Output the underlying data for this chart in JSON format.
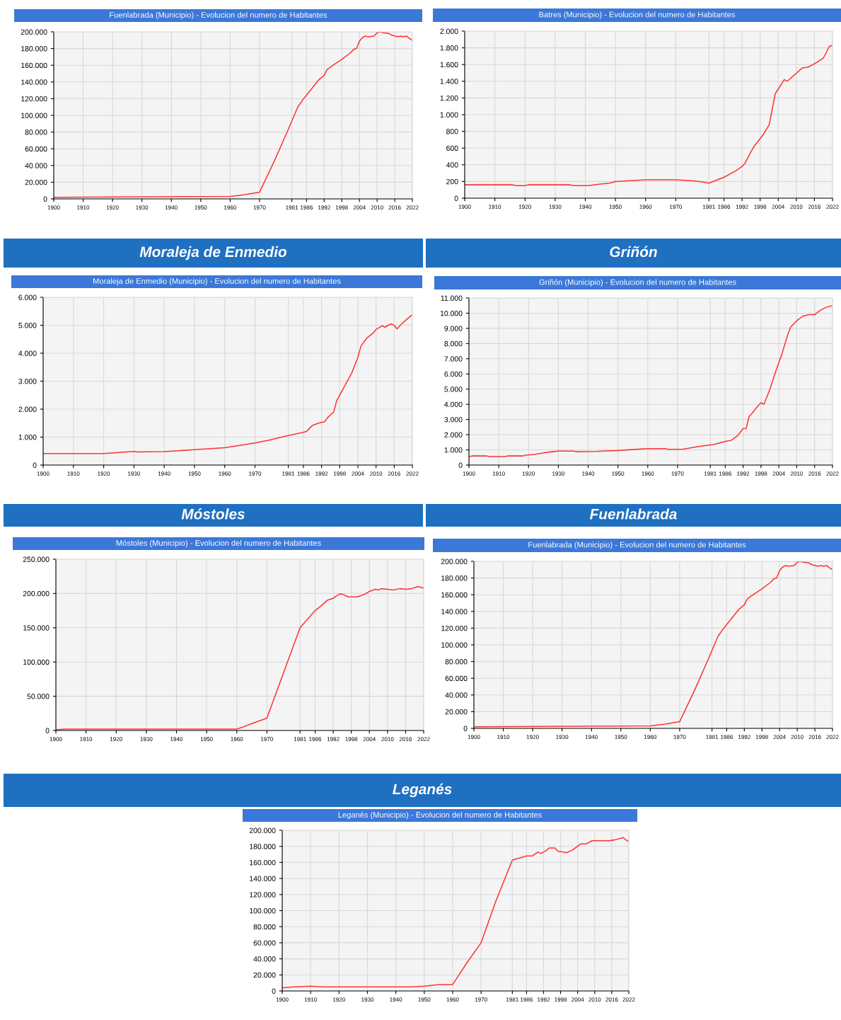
{
  "chart_data": [
    {
      "type": "line",
      "title": "Fuenlabrada (Municipio) - Evolucion del numero de Habitantes",
      "x": [
        1900,
        1960,
        1965,
        1970,
        1975,
        1980,
        1983,
        1985,
        1988,
        1990,
        1992,
        1993,
        1995,
        1998,
        2001,
        2002,
        2003,
        2004,
        2005,
        2006,
        2007,
        2009,
        2010,
        2011,
        2012,
        2014,
        2015,
        2017,
        2018,
        2019,
        2020,
        2021,
        2022
      ],
      "series": [
        {
          "color": "#ff3333",
          "values": [
            2000,
            3000,
            5000,
            8000,
            45000,
            85000,
            110000,
            120000,
            133000,
            142000,
            148000,
            155000,
            160000,
            167000,
            175000,
            179000,
            180000,
            189000,
            193000,
            195000,
            194000,
            195000,
            199000,
            200000,
            199000,
            198000,
            196000,
            194000,
            195000,
            194000,
            195000,
            192000,
            190000
          ]
        }
      ],
      "xlim": [
        1900,
        2022
      ],
      "xticks": [
        1900,
        1910,
        1920,
        1930,
        1940,
        1950,
        1960,
        1970,
        1981,
        1986,
        1992,
        1998,
        2004,
        2010,
        2016,
        2022
      ],
      "ylim": [
        0,
        200000
      ],
      "yticks": [
        {
          "value": 0,
          "label": "0"
        },
        {
          "value": 20000,
          "label": "20.000"
        },
        {
          "value": 40000,
          "label": "40.000"
        },
        {
          "value": 60000,
          "label": "60.000"
        },
        {
          "value": 80000,
          "label": "80.000"
        },
        {
          "value": 100000,
          "label": "100.000"
        },
        {
          "value": 120000,
          "label": "120.000"
        },
        {
          "value": 140000,
          "label": "140.000"
        },
        {
          "value": 160000,
          "label": "160.000"
        },
        {
          "value": 180000,
          "label": "180.000"
        },
        {
          "value": 200000,
          "label": "200.000"
        }
      ],
      "grid": true,
      "line_style": "solid"
    },
    {
      "type": "line",
      "title": "Batres (Municipio) - Evolucion del numero de Habitantes",
      "x": [
        1900,
        1916,
        1917,
        1920,
        1921,
        1935,
        1936,
        1941,
        1945,
        1948,
        1950,
        1955,
        1960,
        1965,
        1970,
        1975,
        1978,
        1981,
        1986,
        1990,
        1992,
        1993,
        1995,
        1996,
        1999,
        2001,
        2003,
        2006,
        2007,
        2012,
        2014,
        2017,
        2019,
        2021,
        2022
      ],
      "series": [
        {
          "color": "#ff3333",
          "values": [
            160,
            160,
            150,
            150,
            160,
            160,
            150,
            150,
            170,
            180,
            200,
            210,
            220,
            220,
            220,
            210,
            200,
            180,
            250,
            330,
            380,
            420,
            560,
            620,
            760,
            880,
            1250,
            1420,
            1400,
            1560,
            1570,
            1630,
            1680,
            1820,
            1830
          ]
        }
      ],
      "xlim": [
        1900,
        2022
      ],
      "xticks": [
        1900,
        1910,
        1920,
        1930,
        1940,
        1950,
        1960,
        1970,
        1981,
        1986,
        1992,
        1998,
        2004,
        2010,
        2016,
        2022
      ],
      "ylim": [
        0,
        2000
      ],
      "yticks": [
        0,
        200,
        400,
        600,
        800,
        {
          "value": 1000,
          "label": "1.000"
        },
        {
          "value": 1200,
          "label": "1.200"
        },
        {
          "value": 1400,
          "label": "1.400"
        },
        {
          "value": 1600,
          "label": "1.600"
        },
        {
          "value": 1800,
          "label": "1.800"
        },
        {
          "value": 2000,
          "label": "2.000"
        }
      ],
      "grid": true,
      "line_style": "solid"
    },
    {
      "type": "line",
      "title": "Moraleja de Enmedio (Municipio) - Evolucion del numero de Habitantes",
      "annotations": [
        "Moraleja de Enmedio"
      ],
      "x": [
        1900,
        1920,
        1925,
        1930,
        1931,
        1940,
        1950,
        1960,
        1965,
        1970,
        1975,
        1980,
        1986,
        1987,
        1989,
        1991,
        1993,
        1994,
        1996,
        1997,
        2000,
        2002,
        2004,
        2005,
        2007,
        2009,
        2010,
        2012,
        2013,
        2014,
        2015,
        2016,
        2017,
        2018,
        2020,
        2022
      ],
      "series": [
        {
          "color": "#ff3333",
          "values": [
            410,
            410,
            450,
            490,
            470,
            480,
            550,
            620,
            700,
            790,
            900,
            1030,
            1170,
            1200,
            1420,
            1500,
            1550,
            1700,
            1900,
            2300,
            2900,
            3300,
            3850,
            4250,
            4550,
            4720,
            4850,
            4980,
            4930,
            5000,
            5050,
            4990,
            4870,
            5000,
            5200,
            5380
          ]
        }
      ],
      "xlim": [
        1900,
        2022
      ],
      "xticks": [
        1900,
        1910,
        1920,
        1930,
        1940,
        1950,
        1960,
        1970,
        1981,
        1986,
        1992,
        1998,
        2004,
        2010,
        2016,
        2022
      ],
      "ylim": [
        0,
        6000
      ],
      "yticks": [
        0,
        {
          "value": 1000,
          "label": "1.000"
        },
        {
          "value": 2000,
          "label": "2.000"
        },
        {
          "value": 3000,
          "label": "3.000"
        },
        {
          "value": 4000,
          "label": "4.000"
        },
        {
          "value": 5000,
          "label": "5.000"
        },
        {
          "value": 6000,
          "label": "6.000"
        }
      ],
      "grid": true,
      "line_style": "solid"
    },
    {
      "type": "line",
      "title": "Griñón (Municipio) - Evolucion del numero de Habitantes",
      "annotations": [
        "Griñón"
      ],
      "x": [
        1900,
        1901,
        1906,
        1907,
        1912,
        1913,
        1918,
        1919,
        1922,
        1925,
        1928,
        1930,
        1935,
        1936,
        1943,
        1945,
        1950,
        1955,
        1960,
        1966,
        1967,
        1972,
        1975,
        1978,
        1982,
        1985,
        1987,
        1988,
        1990,
        1992,
        1993,
        1994,
        1995,
        1997,
        1998,
        1999,
        2001,
        2003,
        2005,
        2007,
        2008,
        2010,
        2012,
        2014,
        2016,
        2018,
        2020,
        2022
      ],
      "series": [
        {
          "color": "#ff3333",
          "values": [
            550,
            600,
            600,
            560,
            560,
            600,
            600,
            650,
            700,
            800,
            880,
            920,
            920,
            880,
            900,
            920,
            960,
            1020,
            1080,
            1080,
            1030,
            1050,
            1150,
            1250,
            1350,
            1500,
            1600,
            1620,
            1900,
            2400,
            2400,
            3200,
            3400,
            3900,
            4100,
            4000,
            5000,
            6200,
            7300,
            8600,
            9100,
            9500,
            9800,
            9900,
            9900,
            10200,
            10400,
            10500
          ]
        }
      ],
      "xlim": [
        1900,
        2022
      ],
      "xticks": [
        1900,
        1910,
        1920,
        1930,
        1940,
        1950,
        1960,
        1970,
        1981,
        1986,
        1992,
        1998,
        2004,
        2010,
        2016,
        2022
      ],
      "ylim": [
        0,
        11000
      ],
      "yticks": [
        0,
        {
          "value": 1000,
          "label": "1.000"
        },
        {
          "value": 2000,
          "label": "2.000"
        },
        {
          "value": 3000,
          "label": "3.000"
        },
        {
          "value": 4000,
          "label": "4.000"
        },
        {
          "value": 5000,
          "label": "5.000"
        },
        {
          "value": 6000,
          "label": "6.000"
        },
        {
          "value": 7000,
          "label": "7.000"
        },
        {
          "value": 8000,
          "label": "8.000"
        },
        {
          "value": 9000,
          "label": "9.000"
        },
        {
          "value": 10000,
          "label": "10.000"
        },
        {
          "value": 11000,
          "label": "11.000"
        }
      ],
      "grid": true,
      "line_style": "solid"
    },
    {
      "type": "line",
      "title": "Móstoles (Municipio) - Evolucion del numero de Habitantes",
      "annotations": [
        "Móstoles"
      ],
      "x": [
        1900,
        1903,
        1960,
        1962,
        1965,
        1970,
        1981,
        1984,
        1986,
        1988,
        1990,
        1992,
        1994,
        1995,
        1997,
        2000,
        2002,
        2004,
        2006,
        2007,
        2008,
        2010,
        2012,
        2014,
        2016,
        2018,
        2020,
        2022
      ],
      "series": [
        {
          "color": "#ff3333",
          "values": [
            1000,
            2000,
            2000,
            5000,
            10000,
            18000,
            150000,
            165000,
            175000,
            182000,
            190000,
            193000,
            199000,
            199000,
            195000,
            195000,
            198000,
            203000,
            206000,
            205000,
            207000,
            206000,
            205000,
            207000,
            206000,
            207000,
            210000,
            208000
          ]
        }
      ],
      "xlim": [
        1900,
        2022
      ],
      "xticks": [
        1900,
        1910,
        1920,
        1930,
        1940,
        1950,
        1960,
        1970,
        1981,
        1986,
        1992,
        1998,
        2004,
        2010,
        2016,
        2022
      ],
      "ylim": [
        0,
        250000
      ],
      "yticks": [
        0,
        {
          "value": 50000,
          "label": "50.000"
        },
        {
          "value": 100000,
          "label": "100.000"
        },
        {
          "value": 150000,
          "label": "150.000"
        },
        {
          "value": 200000,
          "label": "200.000"
        },
        {
          "value": 250000,
          "label": "250.000"
        }
      ],
      "grid": true,
      "line_style": "solid"
    },
    {
      "type": "line",
      "title": "Fuenlabrada (Municipio) - Evolucion del numero de Habitantes",
      "annotations": [
        "Fuenlabrada"
      ],
      "x": [
        1900,
        1960,
        1965,
        1970,
        1975,
        1980,
        1983,
        1985,
        1988,
        1990,
        1992,
        1993,
        1995,
        1998,
        2001,
        2002,
        2003,
        2004,
        2005,
        2006,
        2007,
        2009,
        2010,
        2011,
        2012,
        2014,
        2015,
        2017,
        2018,
        2019,
        2020,
        2021,
        2022
      ],
      "series": [
        {
          "color": "#ff3333",
          "values": [
            2000,
            3000,
            5000,
            8000,
            45000,
            85000,
            110000,
            120000,
            133000,
            142000,
            148000,
            155000,
            160000,
            167000,
            175000,
            179000,
            180000,
            189000,
            193000,
            195000,
            194000,
            195000,
            199000,
            200000,
            199000,
            198000,
            196000,
            194000,
            195000,
            194000,
            195000,
            192000,
            190000
          ]
        }
      ],
      "xlim": [
        1900,
        2022
      ],
      "xticks": [
        1900,
        1910,
        1920,
        1930,
        1940,
        1950,
        1960,
        1970,
        1981,
        1986,
        1992,
        1998,
        2004,
        2010,
        2016,
        2022
      ],
      "ylim": [
        0,
        200000
      ],
      "yticks": [
        {
          "value": 0,
          "label": "0"
        },
        {
          "value": 20000,
          "label": "20.000"
        },
        {
          "value": 40000,
          "label": "40.000"
        },
        {
          "value": 60000,
          "label": "60.000"
        },
        {
          "value": 80000,
          "label": "80.000"
        },
        {
          "value": 100000,
          "label": "100.000"
        },
        {
          "value": 120000,
          "label": "120.000"
        },
        {
          "value": 140000,
          "label": "140.000"
        },
        {
          "value": 160000,
          "label": "160.000"
        },
        {
          "value": 180000,
          "label": "180.000"
        },
        {
          "value": 200000,
          "label": "200.000"
        }
      ],
      "grid": true,
      "line_style": "solid"
    },
    {
      "type": "line",
      "title": "Leganés (Municipio) - Evolucion del numero de Habitantes",
      "annotations": [
        "Leganés"
      ],
      "x": [
        1900,
        1904,
        1910,
        1915,
        1928,
        1945,
        1950,
        1955,
        1960,
        1965,
        1970,
        1975,
        1981,
        1986,
        1988,
        1990,
        1991,
        1993,
        1994,
        1996,
        1997,
        1999,
        2000,
        2002,
        2005,
        2007,
        2009,
        2011,
        2013,
        2015,
        2017,
        2020,
        2021,
        2022
      ],
      "series": [
        {
          "color": "#ff3333",
          "values": [
            4000,
            5000,
            6000,
            5000,
            5000,
            5000,
            6000,
            8000,
            8000,
            35000,
            60000,
            110000,
            163000,
            168000,
            168000,
            173000,
            171000,
            175000,
            178000,
            178000,
            174000,
            173000,
            172000,
            175000,
            183000,
            183000,
            187000,
            187000,
            187000,
            187000,
            188000,
            191000,
            188000,
            186000
          ]
        }
      ],
      "xlim": [
        1900,
        2022
      ],
      "xticks": [
        1900,
        1910,
        1920,
        1930,
        1940,
        1950,
        1960,
        1970,
        1981,
        1986,
        1992,
        1998,
        2004,
        2010,
        2016,
        2022
      ],
      "ylim": [
        0,
        200000
      ],
      "yticks": [
        {
          "value": 0,
          "label": "0"
        },
        {
          "value": 20000,
          "label": "20.000"
        },
        {
          "value": 40000,
          "label": "40.000"
        },
        {
          "value": 60000,
          "label": "60.000"
        },
        {
          "value": 80000,
          "label": "80.000"
        },
        {
          "value": 100000,
          "label": "100.000"
        },
        {
          "value": 120000,
          "label": "120.000"
        },
        {
          "value": 140000,
          "label": "140.000"
        },
        {
          "value": 160000,
          "label": "160.000"
        },
        {
          "value": 180000,
          "label": "180.000"
        },
        {
          "value": 200000,
          "label": "200.000"
        }
      ],
      "grid": true,
      "line_style": "solid"
    }
  ]
}
